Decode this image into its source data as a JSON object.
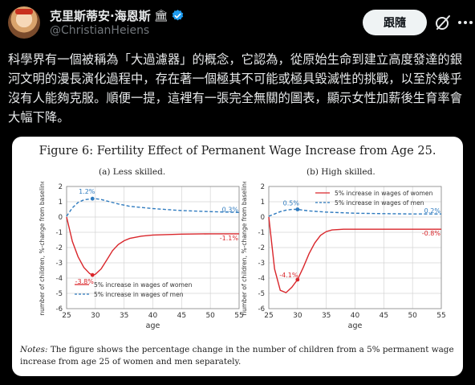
{
  "post": {
    "display_name": "克里斯蒂安·海恩斯",
    "name_emoji": "🏛",
    "handle": "@ChristianHeiens",
    "follow_label": "跟隨",
    "text": "科學界有一個被稱為「大過濾器」的概念，它認為，從原始生命到建立高度發達的銀河文明的漫長演化過程中，存在著一個極其不可能或極具毀滅性的挑戰，以至於幾乎沒有人能夠克服。順便一提，這裡有一張完全無關的圖表，顯示女性加薪後生育率會大幅下降。"
  },
  "figure": {
    "title": "Figure 6: Fertility Effect of Permanent Wage Increase from Age 25.",
    "notes_label": "Notes:",
    "notes_text": " The figure shows the percentage change in the number of children from a 5% permanent wage increase from age 25 of women and men separately."
  },
  "colors": {
    "women": "#d9262b",
    "men": "#2f7bbf",
    "verified": "#1d9bf0",
    "grid": "#d4d4d4"
  },
  "chart_data": [
    {
      "type": "line",
      "title": "(a) Less skilled.",
      "xlabel": "age",
      "ylabel": "number of children, %-change from baseline",
      "xlim": [
        25,
        55
      ],
      "ylim": [
        -6,
        2
      ],
      "xticks": [
        25,
        30,
        35,
        40,
        45,
        50,
        55
      ],
      "yticks": [
        -6,
        -5,
        -4,
        -3,
        -2,
        -1,
        0,
        1,
        2
      ],
      "grid": true,
      "legend": "bottom-left",
      "series": [
        {
          "name": "5% increase in wages of women",
          "style": "solid",
          "points": [
            [
              25,
              0
            ],
            [
              26,
              -1.6
            ],
            [
              27,
              -2.6
            ],
            [
              28,
              -3.3
            ],
            [
              29,
              -3.7
            ],
            [
              29.5,
              -3.8
            ],
            [
              30,
              -3.75
            ],
            [
              31,
              -3.4
            ],
            [
              32,
              -2.8
            ],
            [
              33,
              -2.2
            ],
            [
              34,
              -1.8
            ],
            [
              35,
              -1.55
            ],
            [
              36,
              -1.4
            ],
            [
              38,
              -1.25
            ],
            [
              40,
              -1.18
            ],
            [
              45,
              -1.12
            ],
            [
              50,
              -1.1
            ],
            [
              55,
              -1.1
            ]
          ],
          "marker": [
            29.5,
            -3.8
          ],
          "label": "-3.8%",
          "end_label": "-1.1%"
        },
        {
          "name": "5% increase in wages of men",
          "style": "dashed",
          "points": [
            [
              25,
              0.05
            ],
            [
              26,
              0.6
            ],
            [
              27,
              0.95
            ],
            [
              28,
              1.12
            ],
            [
              29,
              1.18
            ],
            [
              30,
              1.2
            ],
            [
              31,
              1.15
            ],
            [
              32,
              1.05
            ],
            [
              34,
              0.85
            ],
            [
              36,
              0.7
            ],
            [
              40,
              0.55
            ],
            [
              45,
              0.42
            ],
            [
              50,
              0.35
            ],
            [
              55,
              0.3
            ]
          ],
          "marker": [
            29.5,
            1.2
          ],
          "label": "1.2%",
          "end_label": "0.3%"
        }
      ]
    },
    {
      "type": "line",
      "title": "(b) High skilled.",
      "xlabel": "age",
      "ylabel": "number of children, %-change from baseline",
      "xlim": [
        25,
        55
      ],
      "ylim": [
        -6,
        2
      ],
      "xticks": [
        25,
        30,
        35,
        40,
        45,
        50,
        55
      ],
      "yticks": [
        -6,
        -5,
        -4,
        -3,
        -2,
        -1,
        0,
        1,
        2
      ],
      "grid": true,
      "legend": "top-right",
      "series": [
        {
          "name": "5% increase in wages of women",
          "style": "solid",
          "points": [
            [
              25,
              0
            ],
            [
              26,
              -3.4
            ],
            [
              27,
              -4.8
            ],
            [
              28,
              -4.95
            ],
            [
              29,
              -4.6
            ],
            [
              30,
              -4.1
            ],
            [
              31,
              -3.3
            ],
            [
              32,
              -2.4
            ],
            [
              33,
              -1.7
            ],
            [
              34,
              -1.2
            ],
            [
              35,
              -0.95
            ],
            [
              36,
              -0.85
            ],
            [
              38,
              -0.8
            ],
            [
              40,
              -0.8
            ],
            [
              45,
              -0.8
            ],
            [
              50,
              -0.8
            ],
            [
              55,
              -0.8
            ]
          ],
          "marker": [
            30,
            -4.1
          ],
          "label": "-4.1%",
          "end_label": "-0.8%"
        },
        {
          "name": "5% increase in wages of men",
          "style": "dashed",
          "points": [
            [
              25,
              0.05
            ],
            [
              26,
              0.2
            ],
            [
              27,
              0.35
            ],
            [
              28,
              0.45
            ],
            [
              29,
              0.5
            ],
            [
              30,
              0.5
            ],
            [
              31,
              0.45
            ],
            [
              32,
              0.4
            ],
            [
              35,
              0.32
            ],
            [
              40,
              0.25
            ],
            [
              45,
              0.22
            ],
            [
              50,
              0.2
            ],
            [
              55,
              0.2
            ]
          ],
          "marker": [
            30,
            0.5
          ],
          "label": "0.5%",
          "end_label": "0.2%"
        }
      ]
    }
  ]
}
